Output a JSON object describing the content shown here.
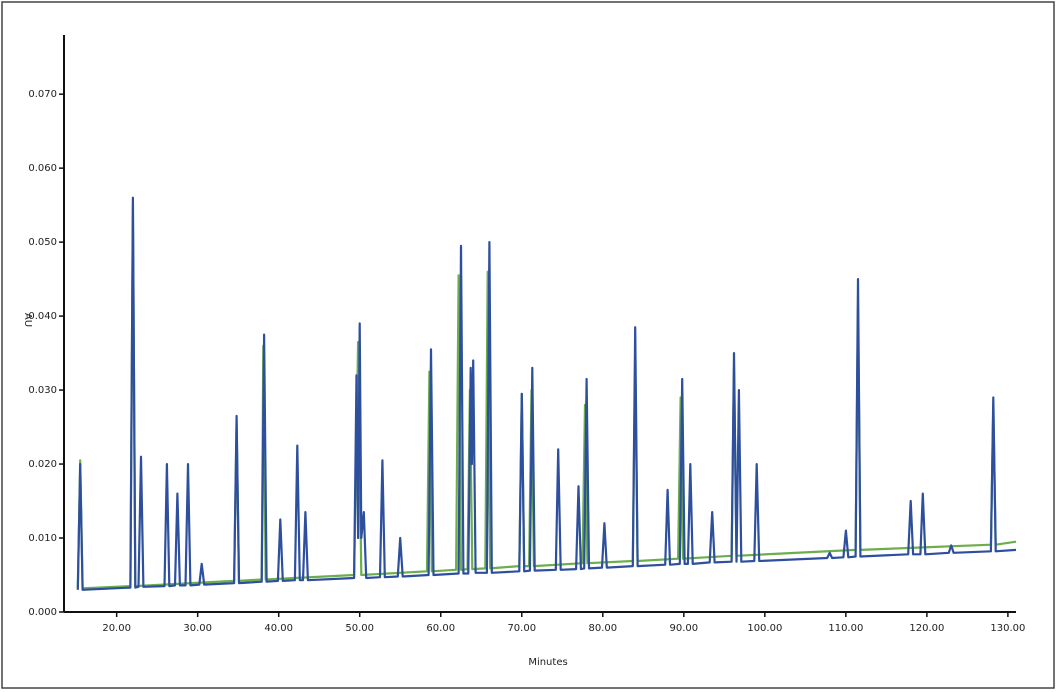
{
  "chart_data": {
    "type": "line",
    "xlabel": "Minutes",
    "ylabel": "AU",
    "xlim": [
      13.5,
      131
    ],
    "ylim": [
      0,
      0.078
    ],
    "xticks": [
      {
        "value": 20,
        "label": "20.00"
      },
      {
        "value": 30,
        "label": "30.00"
      },
      {
        "value": 40,
        "label": "40.00"
      },
      {
        "value": 50,
        "label": "50.00"
      },
      {
        "value": 60,
        "label": "60.00"
      },
      {
        "value": 70,
        "label": "70.00"
      },
      {
        "value": 80,
        "label": "80.00"
      },
      {
        "value": 90,
        "label": "90.00"
      },
      {
        "value": 100,
        "label": "100.00"
      },
      {
        "value": 110,
        "label": "110.00"
      },
      {
        "value": 120,
        "label": "120.00"
      },
      {
        "value": 130,
        "label": "130.00"
      }
    ],
    "yticks": [
      {
        "value": 0,
        "label": "0.000"
      },
      {
        "value": 0.01,
        "label": "0.010"
      },
      {
        "value": 0.02,
        "label": "0.020"
      },
      {
        "value": 0.03,
        "label": "0.030"
      },
      {
        "value": 0.04,
        "label": "0.040"
      },
      {
        "value": 0.05,
        "label": "0.050"
      },
      {
        "value": 0.06,
        "label": "0.060"
      },
      {
        "value": 0.07,
        "label": "0.070"
      }
    ],
    "series": [
      {
        "color": "#6cae4c",
        "x": [
          15.2,
          15.5,
          15.8,
          21.7,
          22,
          22.3,
          34.5,
          34.8,
          35.1,
          37.9,
          38.1,
          38.4,
          49.3,
          49.8,
          50.2,
          58.3,
          58.6,
          58.9,
          61.9,
          62.2,
          62.5,
          63.3,
          63.6,
          63.9,
          65.5,
          65.8,
          66.1,
          69.7,
          70,
          70.3,
          70.9,
          71.2,
          71.5,
          77.5,
          77.8,
          78.1,
          83.7,
          84,
          84.3,
          89.3,
          89.6,
          89.9,
          95.9,
          96.2,
          96.5,
          111.2,
          111.5,
          111.8,
          127.9,
          128.2,
          128.5,
          131
        ],
        "values": [
          0.0032,
          0.0205,
          0.0032,
          0.0035,
          0.055,
          0.0035,
          0.0042,
          0.0255,
          0.0042,
          0.0044,
          0.036,
          0.0044,
          0.005,
          0.0365,
          0.005,
          0.0055,
          0.0325,
          0.0055,
          0.0057,
          0.0455,
          0.0057,
          0.0058,
          0.03,
          0.0058,
          0.0059,
          0.046,
          0.0059,
          0.0062,
          0.0295,
          0.0062,
          0.0062,
          0.03,
          0.0062,
          0.0066,
          0.028,
          0.0066,
          0.0069,
          0.034,
          0.0069,
          0.0072,
          0.029,
          0.0072,
          0.0076,
          0.033,
          0.0076,
          0.0084,
          0.041,
          0.0084,
          0.0091,
          0.028,
          0.0091,
          0.0095
        ]
      },
      {
        "color": "#2e4f9e",
        "x": [
          15.2,
          15.5,
          15.8,
          21.7,
          22,
          22.3,
          22.7,
          23,
          23.3,
          25.9,
          26.2,
          26.5,
          27.2,
          27.5,
          27.8,
          28.5,
          28.8,
          29.1,
          30.2,
          30.5,
          30.8,
          34.5,
          34.8,
          35.1,
          37.9,
          38.2,
          38.5,
          39.9,
          40.2,
          40.5,
          42,
          42.3,
          42.6,
          43,
          43.3,
          43.6,
          49.3,
          49.6,
          49.8,
          50,
          50.2,
          50.5,
          50.8,
          52.5,
          52.8,
          53.1,
          54.7,
          55,
          55.3,
          58.5,
          58.8,
          59.1,
          62.2,
          62.5,
          62.8,
          63.4,
          63.7,
          63.85,
          64,
          64.3,
          65.7,
          66,
          66.3,
          69.7,
          70,
          70.3,
          71,
          71.3,
          71.6,
          74.2,
          74.5,
          74.8,
          76.7,
          77,
          77.3,
          77.7,
          78,
          78.3,
          79.9,
          80.2,
          80.5,
          83.7,
          84,
          84.3,
          87.7,
          88,
          88.3,
          89.5,
          89.8,
          90.1,
          90.5,
          90.8,
          91.1,
          93.2,
          93.5,
          93.8,
          95.9,
          96.2,
          96.5,
          96.8,
          97.1,
          98.7,
          99,
          99.3,
          107.7,
          108,
          108.3,
          109.7,
          110,
          110.3,
          111.2,
          111.5,
          111.8,
          117.7,
          118,
          118.3,
          119.2,
          119.5,
          119.8,
          122.7,
          123,
          123.3,
          127.9,
          128.2,
          128.5,
          131
        ],
        "values": [
          0.003,
          0.02,
          0.003,
          0.0033,
          0.056,
          0.0033,
          0.0034,
          0.021,
          0.0034,
          0.0035,
          0.02,
          0.0035,
          0.0036,
          0.016,
          0.0036,
          0.0036,
          0.02,
          0.0036,
          0.0037,
          0.0065,
          0.0037,
          0.0039,
          0.0265,
          0.0039,
          0.0041,
          0.0375,
          0.0041,
          0.0042,
          0.0125,
          0.0042,
          0.0043,
          0.0225,
          0.0043,
          0.0043,
          0.0135,
          0.0043,
          0.0046,
          0.032,
          0.01,
          0.039,
          0.01,
          0.0135,
          0.0046,
          0.0047,
          0.0205,
          0.0047,
          0.0048,
          0.01,
          0.0048,
          0.005,
          0.0355,
          0.005,
          0.0052,
          0.0495,
          0.0052,
          0.0052,
          0.033,
          0.02,
          0.034,
          0.0053,
          0.0053,
          0.05,
          0.0053,
          0.0055,
          0.0295,
          0.0055,
          0.0056,
          0.033,
          0.0056,
          0.0057,
          0.022,
          0.0057,
          0.0058,
          0.017,
          0.0058,
          0.0059,
          0.0315,
          0.0059,
          0.006,
          0.012,
          0.006,
          0.0062,
          0.0385,
          0.0062,
          0.0064,
          0.0165,
          0.0064,
          0.0065,
          0.0315,
          0.0065,
          0.0065,
          0.02,
          0.0065,
          0.0067,
          0.0135,
          0.0067,
          0.0068,
          0.035,
          0.0068,
          0.03,
          0.0068,
          0.0069,
          0.02,
          0.0069,
          0.0073,
          0.008,
          0.0073,
          0.0074,
          0.011,
          0.0074,
          0.0075,
          0.045,
          0.0075,
          0.0078,
          0.015,
          0.0078,
          0.0078,
          0.016,
          0.0078,
          0.008,
          0.009,
          0.008,
          0.0082,
          0.029,
          0.0082,
          0.0084
        ]
      }
    ]
  }
}
